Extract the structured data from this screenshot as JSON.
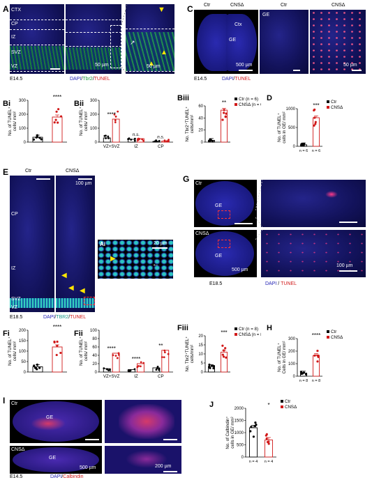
{
  "panels": {
    "A": {
      "letter": "A",
      "ctx": "CTX",
      "cp": "CP",
      "iz": "IZ",
      "svz": "SVZ",
      "vz": "VZ",
      "scale1": "50 µm",
      "scale2": "50 µm",
      "stage": "E14.5",
      "legend_dapi": "DAPI",
      "legend_sep1": "/",
      "legend_tbr2": "Tbr2",
      "legend_sep2": "/",
      "legend_tunel": "TUNEL",
      "colors": {
        "dapi": "#1f1fb4",
        "tbr2": "#1a9a3a",
        "tunel": "#d11919"
      }
    },
    "C": {
      "letter": "C",
      "ctr": "Ctr",
      "cnsd": "CNSΔ",
      "ctx": "Ctx",
      "ge": "GE",
      "ge2": "GE",
      "scale1": "500 µm",
      "scale2": "50 µm",
      "stage": "E14.5",
      "ctr2": "Ctr",
      "cnsd2": "CNSΔ",
      "legend_dapi": "DAPI",
      "legend_sep": "/",
      "legend_tunel": "TUNEL"
    },
    "E": {
      "letter": "E",
      "ctr": "Ctr",
      "cnsd": "CNSΔ",
      "scale": "100 µm",
      "cp": "CP",
      "iz": "IZ",
      "svz": "SVZ",
      "vz": "VZ",
      "stage": "E18.5",
      "inset": "Ai",
      "inset_scale": "20 µm",
      "legend_dapi": "DAPI",
      "legend_sep1": "/",
      "legend_tbr2": "TBR2",
      "legend_sep2": "/",
      "legend_tunel": "TUNEL"
    },
    "G": {
      "letter": "G",
      "ctr": "Ctr",
      "cnsd": "CNSΔ",
      "ge1": "GE",
      "ge2": "GE",
      "scale1": "500 µm",
      "scale2": "100 µm",
      "stage": "E18.5",
      "legend_dapi": "DAPI",
      "legend_sep": " / ",
      "legend_tunel": "TUNEL"
    },
    "I": {
      "letter": "I",
      "ctr": "Ctr",
      "cnsd": "CNSΔ",
      "ge1": "GE",
      "ge2": "GE",
      "scale1": "500 µm",
      "scale2": "200 µm",
      "stage": "E14.5",
      "legend_dapi": "DAPI",
      "legend_sep": "/",
      "legend_calb": "Calbindin"
    }
  },
  "chart_data": [
    {
      "id": "Bi",
      "type": "bar",
      "label": "Bi",
      "ylabel_lines": [
        "No. of TUNEL⁺",
        "cells/ mm²"
      ],
      "ylim": [
        0,
        300
      ],
      "yticks": [
        "0",
        "100",
        "200",
        "300"
      ],
      "categories": [
        "Ctr",
        "CNSΔ"
      ],
      "series": [
        {
          "values": [
            35,
            180
          ]
        }
      ],
      "significance": [
        "****"
      ]
    },
    {
      "id": "Bii",
      "type": "bar",
      "label": "Bii",
      "ylabel_lines": [
        "No. of TUNEL⁺",
        "cells/ mm²"
      ],
      "ylim": [
        0,
        300
      ],
      "yticks": [
        "0",
        "100",
        "200",
        "300"
      ],
      "categories": [
        "VZ+SVZ",
        "IZ",
        "CP"
      ],
      "series": [
        {
          "values": [
            30,
            20,
            5
          ]
        },
        {
          "values": [
            165,
            25,
            8
          ]
        }
      ],
      "significance": [
        "****",
        "n.s.",
        "n.s."
      ]
    },
    {
      "id": "Biii",
      "type": "bar",
      "label": "Biii",
      "ylabel_lines": [
        "No. Tbr2⁺TUNEL⁺",
        "cells/mm²"
      ],
      "ylim": [
        0,
        60
      ],
      "yticks": [
        "0",
        "20",
        "40",
        "60"
      ],
      "categories": [
        "Ctr",
        "CNSΔ"
      ],
      "series": [
        {
          "name": "Ctr (n = 6)",
          "values": [
            3,
            53
          ]
        },
        {
          "name": "CNSΔ (n = 6)",
          "values": [
            3,
            53
          ]
        }
      ],
      "legend": [
        "Ctr (n = 6)",
        "CNSΔ (n = 6)"
      ],
      "significance": [
        "**"
      ]
    },
    {
      "id": "D",
      "type": "bar",
      "label": "D",
      "ylabel_lines": [
        "No. of TUNEL⁺",
        "cells in GE/ mm²"
      ],
      "ylim": [
        0,
        1000
      ],
      "yticks": [
        "0",
        "500",
        "1000"
      ],
      "categories": [
        "Ctr",
        "CNSΔ"
      ],
      "series": [
        {
          "values": [
            40,
            760
          ]
        }
      ],
      "legend": [
        "Ctr",
        "CNSΔ"
      ],
      "n_labels": [
        "n = 6",
        "n = 6"
      ],
      "significance": [
        "***"
      ]
    },
    {
      "id": "Fi",
      "type": "bar",
      "label": "Fi",
      "ylabel_lines": [
        "No. of TUNEL⁺",
        "cells/ mm²"
      ],
      "ylim": [
        0,
        200
      ],
      "yticks": [
        "0",
        "50",
        "100",
        "150",
        "200"
      ],
      "categories": [
        "Ctr",
        "CNSΔ"
      ],
      "series": [
        {
          "values": [
            25,
            120
          ]
        }
      ],
      "significance": [
        "****"
      ]
    },
    {
      "id": "Fii",
      "type": "bar",
      "label": "Fii",
      "ylabel_lines": [
        "No. of TUNEL⁺",
        "cells/ mm²"
      ],
      "ylim": [
        0,
        100
      ],
      "yticks": [
        "0",
        "20",
        "40",
        "60",
        "80",
        "100"
      ],
      "categories": [
        "VZ+SVZ",
        "IZ",
        "CP"
      ],
      "series": [
        {
          "values": [
            8,
            6,
            10
          ]
        },
        {
          "values": [
            45,
            20,
            52
          ]
        }
      ],
      "significance": [
        "****",
        "****",
        "**"
      ]
    },
    {
      "id": "Fiii",
      "type": "bar",
      "label": "Fiii",
      "ylabel_lines": [
        "No. Tbr2⁺TUNEL⁺",
        "cells/mm²"
      ],
      "ylim": [
        0,
        20
      ],
      "yticks": [
        "0",
        "5",
        "10",
        "15",
        "20"
      ],
      "categories": [
        "Ctr",
        "CNSΔ"
      ],
      "series": [
        {
          "name": "Ctr (n = 8)",
          "values": [
            3,
            11
          ]
        },
        {
          "name": "CNSΔ (n = 8)",
          "values": [
            3,
            11
          ]
        }
      ],
      "legend": [
        "Ctr (n = 8)",
        "CNSΔ (n = 8)"
      ],
      "significance": [
        "***"
      ]
    },
    {
      "id": "H",
      "type": "bar",
      "label": "H",
      "ylabel_lines": [
        "No. of TUNEL⁺",
        "Cells in GE/ mm²"
      ],
      "ylim": [
        0,
        300
      ],
      "yticks": [
        "0",
        "100",
        "200",
        "300"
      ],
      "categories": [
        "Ctr",
        "CNSΔ"
      ],
      "series": [
        {
          "values": [
            25,
            165
          ]
        }
      ],
      "legend": [
        "Ctr",
        "CNSΔ"
      ],
      "n_labels": [
        "n = 8",
        "n = 8"
      ],
      "significance": [
        "****"
      ]
    },
    {
      "id": "J",
      "type": "bar",
      "label": "J",
      "ylabel_lines": [
        "No. of Calbindin⁺",
        "cells in GE/ mm²"
      ],
      "ylim": [
        0,
        2000
      ],
      "yticks": [
        "0",
        "500",
        "1000",
        "1500",
        "2000"
      ],
      "categories": [
        "Ctr",
        "CNSΔ"
      ],
      "series": [
        {
          "values": [
            1200,
            700
          ]
        }
      ],
      "legend": [
        "Ctr",
        "CNSΔ"
      ],
      "n_labels": [
        "n = 4",
        "n = 4"
      ],
      "significance": [
        "*"
      ]
    }
  ]
}
